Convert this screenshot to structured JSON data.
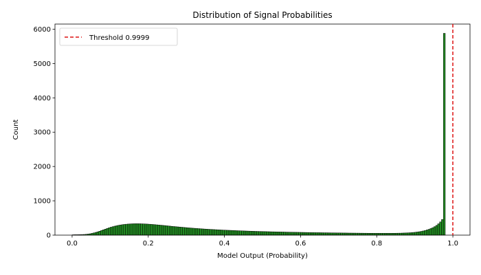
{
  "chart_data": {
    "type": "bar",
    "title": "Distribution of Signal Probabilities",
    "xlabel": "Model Output (Probability)",
    "ylabel": "Count",
    "xlim": [
      -0.045,
      1.045
    ],
    "ylim": [
      0,
      6150
    ],
    "xticks": [
      0.0,
      0.2,
      0.4,
      0.6,
      0.8,
      1.0
    ],
    "xtick_labels": [
      "0.0",
      "0.2",
      "0.4",
      "0.6",
      "0.8",
      "1.0"
    ],
    "yticks": [
      0,
      1000,
      2000,
      3000,
      4000,
      5000,
      6000
    ],
    "ytick_labels": [
      "0",
      "1000",
      "2000",
      "3000",
      "4000",
      "5000",
      "6000"
    ],
    "bins": 200,
    "bin_width": 0.005,
    "values": [
      10,
      12,
      12,
      13,
      15,
      17,
      20,
      25,
      31,
      40,
      52,
      65,
      80,
      97,
      115,
      135,
      155,
      175,
      195,
      215,
      232,
      248,
      262,
      275,
      287,
      297,
      305,
      312,
      318,
      323,
      327,
      330,
      332,
      333,
      333,
      332,
      330,
      328,
      325,
      322,
      318,
      314,
      310,
      305,
      300,
      295,
      290,
      285,
      280,
      274,
      268,
      262,
      256,
      251,
      246,
      241,
      236,
      231,
      226,
      221,
      216,
      211,
      207,
      202,
      198,
      194,
      190,
      186,
      182,
      178,
      175,
      171,
      168,
      165,
      162,
      159,
      156,
      153,
      150,
      147,
      145,
      142,
      140,
      138,
      135,
      133,
      130,
      128,
      126,
      124,
      122,
      120,
      118,
      116,
      114,
      112,
      110,
      109,
      107,
      106,
      104,
      103,
      101,
      100,
      98,
      97,
      96,
      94,
      93,
      92,
      91,
      90,
      88,
      87,
      86,
      85,
      84,
      83,
      82,
      81,
      80,
      79,
      78,
      77,
      76,
      75,
      74,
      73,
      72,
      72,
      71,
      70,
      69,
      69,
      68,
      67,
      66,
      66,
      65,
      64,
      64,
      63,
      62,
      62,
      61,
      60,
      60,
      59,
      59,
      58,
      58,
      57,
      57,
      56,
      56,
      55,
      55,
      55,
      54,
      54,
      54,
      54,
      54,
      54,
      54,
      54,
      54,
      54,
      55,
      55,
      56,
      57,
      58,
      60,
      62,
      64,
      67,
      70,
      74,
      79,
      85,
      92,
      100,
      110,
      122,
      136,
      152,
      170,
      192,
      218,
      248,
      284,
      330,
      385,
      455,
      5880
    ],
    "bar_color": "#228b22",
    "edge_color": "#000000",
    "threshold": {
      "value": 0.9999,
      "label": "Threshold 0.9999",
      "color": "#dd1111"
    },
    "legend_position": "upper-left"
  }
}
